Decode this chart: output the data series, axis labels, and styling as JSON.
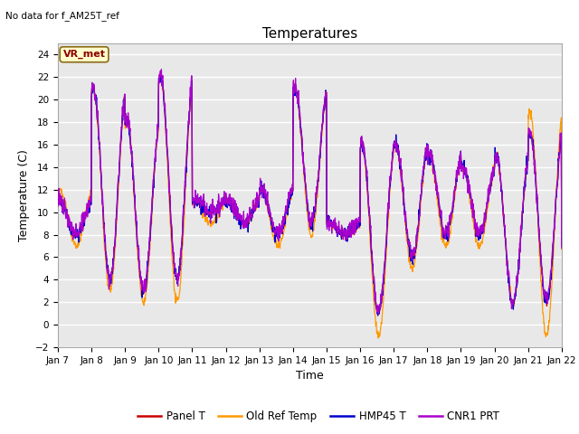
{
  "title": "Temperatures",
  "xlabel": "Time",
  "ylabel": "Temperature (C)",
  "note": "No data for f_AM25T_ref",
  "vr_label": "VR_met",
  "ylim": [
    -2,
    25
  ],
  "yticks": [
    -2,
    0,
    2,
    4,
    6,
    8,
    10,
    12,
    14,
    16,
    18,
    20,
    22,
    24
  ],
  "plot_bg_color": "#e8e8e8",
  "colors": {
    "panel_t": "#cc0000",
    "old_ref": "#ff9900",
    "hmp45": "#0000cc",
    "cnr1": "#aa00cc"
  },
  "legend": [
    "Panel T",
    "Old Ref Temp",
    "HMP45 T",
    "CNR1 PRT"
  ],
  "xtick_labels": [
    "Jan 7",
    "Jan 8",
    "Jan 9",
    "Jan 10",
    "Jan 11",
    "Jan 12",
    "Jan 13",
    "Jan 14",
    "Jan 15",
    "Jan 16",
    "Jan 17",
    "Jan 18",
    "Jan 19",
    "Jan 20",
    "Jan 21",
    "Jan 22"
  ],
  "n_points": 1500,
  "day_peaks_panel": [
    11,
    21,
    18,
    22,
    11,
    11,
    12,
    21,
    9,
    16,
    16,
    15,
    14,
    15,
    17,
    7
  ],
  "day_mins_panel": [
    8,
    4,
    3,
    4,
    10,
    9,
    8,
    9,
    8,
    1,
    6,
    8,
    8,
    2,
    2,
    5
  ],
  "day_peaks_old": [
    12,
    21,
    18,
    22,
    11,
    11,
    12,
    21,
    9,
    16,
    16,
    15,
    14,
    15,
    19,
    7
  ],
  "day_mins_old": [
    7,
    3,
    2,
    2,
    9,
    9,
    7,
    8,
    8,
    -1,
    5,
    7,
    7,
    2,
    -1,
    4
  ]
}
